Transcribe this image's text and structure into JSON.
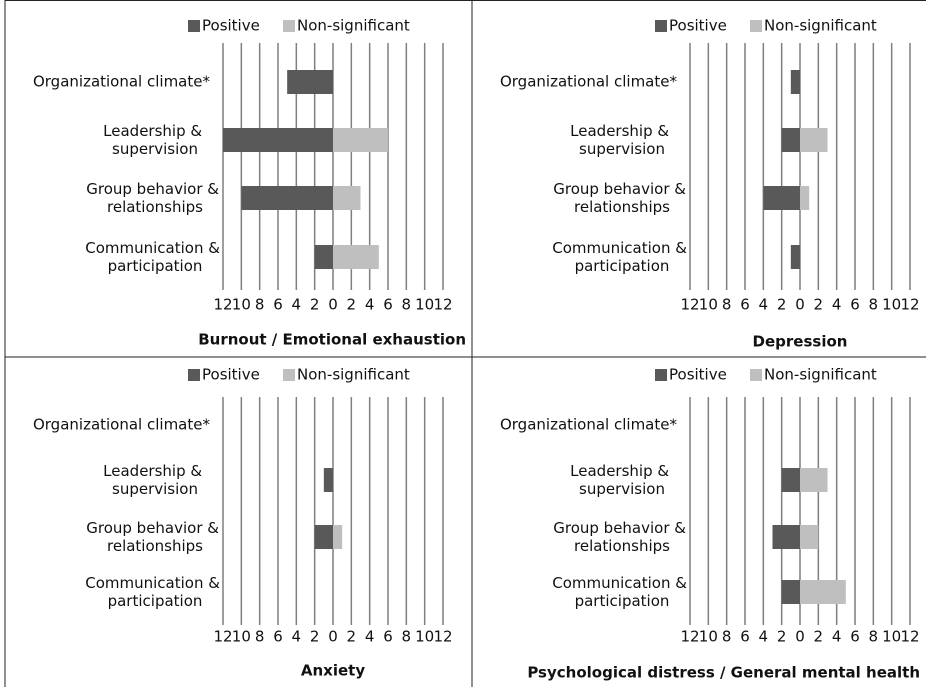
{
  "chart_data": [
    {
      "type": "bar",
      "orientation": "horizontal",
      "title": "Burnout / Emotional exhaustion",
      "categories": [
        "Organizational climate*",
        "Leadership & supervision",
        "Group behavior & relationships",
        "Communication & participation"
      ],
      "series": [
        {
          "name": "Positive",
          "color": "#595959",
          "values": [
            -5,
            -12,
            -10,
            -2
          ]
        },
        {
          "name": "Non-significant",
          "color": "#bfbfbf",
          "values": [
            0,
            6,
            3,
            5
          ]
        }
      ],
      "xlim": [
        -12,
        12
      ],
      "xticks": [
        {
          "value": -12,
          "label": "12"
        },
        {
          "value": -10,
          "label": "10"
        },
        {
          "value": -8,
          "label": "8"
        },
        {
          "value": -6,
          "label": "6"
        },
        {
          "value": -4,
          "label": "4"
        },
        {
          "value": -2,
          "label": "2"
        },
        0,
        2,
        4,
        6,
        8,
        10,
        12
      ],
      "grid": true,
      "legend": "top"
    },
    {
      "type": "bar",
      "orientation": "horizontal",
      "title": "Depression",
      "categories": [
        "Organizational climate*",
        "Leadership & supervision",
        "Group behavior & relationships",
        "Communication & participation"
      ],
      "series": [
        {
          "name": "Positive",
          "color": "#595959",
          "values": [
            -1,
            -2,
            -4,
            -1
          ]
        },
        {
          "name": "Non-significant",
          "color": "#bfbfbf",
          "values": [
            0,
            3,
            1,
            0
          ]
        }
      ],
      "xlim": [
        -12,
        12
      ],
      "xticks": [
        {
          "value": -12,
          "label": "12"
        },
        {
          "value": -10,
          "label": "10"
        },
        {
          "value": -8,
          "label": "8"
        },
        {
          "value": -6,
          "label": "6"
        },
        {
          "value": -4,
          "label": "4"
        },
        {
          "value": -2,
          "label": "2"
        },
        0,
        2,
        4,
        6,
        8,
        10,
        12
      ],
      "grid": true,
      "legend": "top"
    },
    {
      "type": "bar",
      "orientation": "horizontal",
      "title": "Anxiety",
      "categories": [
        "Organizational climate*",
        "Leadership & supervision",
        "Group behavior & relationships",
        "Communication & participation"
      ],
      "series": [
        {
          "name": "Positive",
          "color": "#595959",
          "values": [
            0,
            -1,
            -2,
            0
          ]
        },
        {
          "name": "Non-significant",
          "color": "#bfbfbf",
          "values": [
            0,
            0,
            1,
            0
          ]
        }
      ],
      "xlim": [
        -12,
        12
      ],
      "xticks": [
        {
          "value": -12,
          "label": "12"
        },
        {
          "value": -10,
          "label": "10"
        },
        {
          "value": -8,
          "label": "8"
        },
        {
          "value": -6,
          "label": "6"
        },
        {
          "value": -4,
          "label": "4"
        },
        {
          "value": -2,
          "label": "2"
        },
        0,
        2,
        4,
        6,
        8,
        10,
        12
      ],
      "grid": true,
      "legend": "top"
    },
    {
      "type": "bar",
      "orientation": "horizontal",
      "title": "Psychological distress / General mental health",
      "categories": [
        "Organizational climate*",
        "Leadership & supervision",
        "Group behavior & relationships",
        "Communication & participation"
      ],
      "series": [
        {
          "name": "Positive",
          "color": "#595959",
          "values": [
            0,
            -2,
            -3,
            -2
          ]
        },
        {
          "name": "Non-significant",
          "color": "#bfbfbf",
          "values": [
            0,
            3,
            2,
            5
          ]
        }
      ],
      "xlim": [
        -12,
        12
      ],
      "xticks": [
        {
          "value": -12,
          "label": "12"
        },
        {
          "value": -10,
          "label": "10"
        },
        {
          "value": -8,
          "label": "8"
        },
        {
          "value": -6,
          "label": "6"
        },
        {
          "value": -4,
          "label": "4"
        },
        {
          "value": -2,
          "label": "2"
        },
        0,
        2,
        4,
        6,
        8,
        10,
        12
      ],
      "grid": true,
      "legend": "top"
    }
  ]
}
